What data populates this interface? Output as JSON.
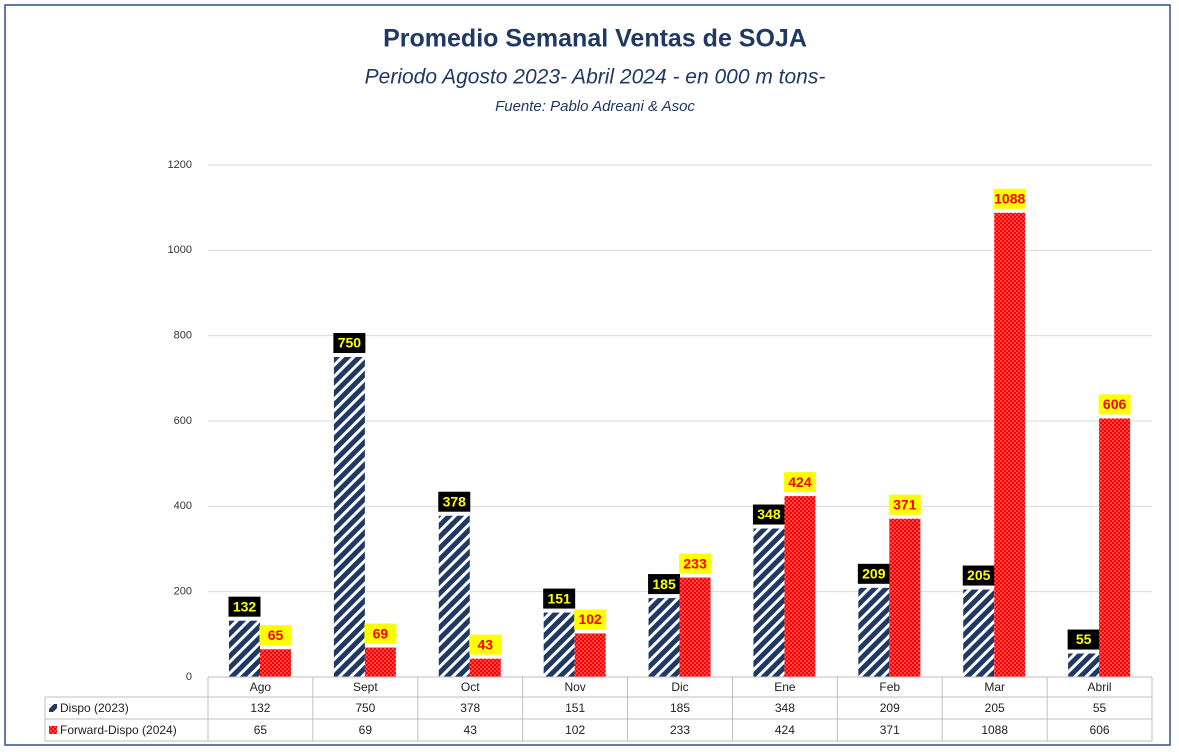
{
  "chart_data": {
    "type": "bar",
    "title": "Promedio Semanal Ventas de SOJA",
    "subtitle": "Periodo Agosto 2023- Abril  2024 - en 000 m tons-",
    "source": "Fuente: Pablo Adreani & Asoc",
    "categories": [
      "Ago",
      "Sept",
      "Oct",
      "Nov",
      "Dic",
      "Ene",
      "Feb",
      "Mar",
      "Abril"
    ],
    "series": [
      {
        "name": "Dispo (2023)",
        "color": "#1f3864",
        "values": [
          132,
          750,
          378,
          151,
          185,
          348,
          209,
          205,
          55
        ]
      },
      {
        "name": "Forward-Dispo (2024)",
        "color": "#ff0000",
        "values": [
          65,
          69,
          43,
          102,
          233,
          424,
          371,
          1088,
          606
        ]
      }
    ],
    "ylim": [
      0,
      1200
    ],
    "yticks": [
      0,
      200,
      400,
      600,
      800,
      1000,
      1200
    ],
    "grid": true
  }
}
